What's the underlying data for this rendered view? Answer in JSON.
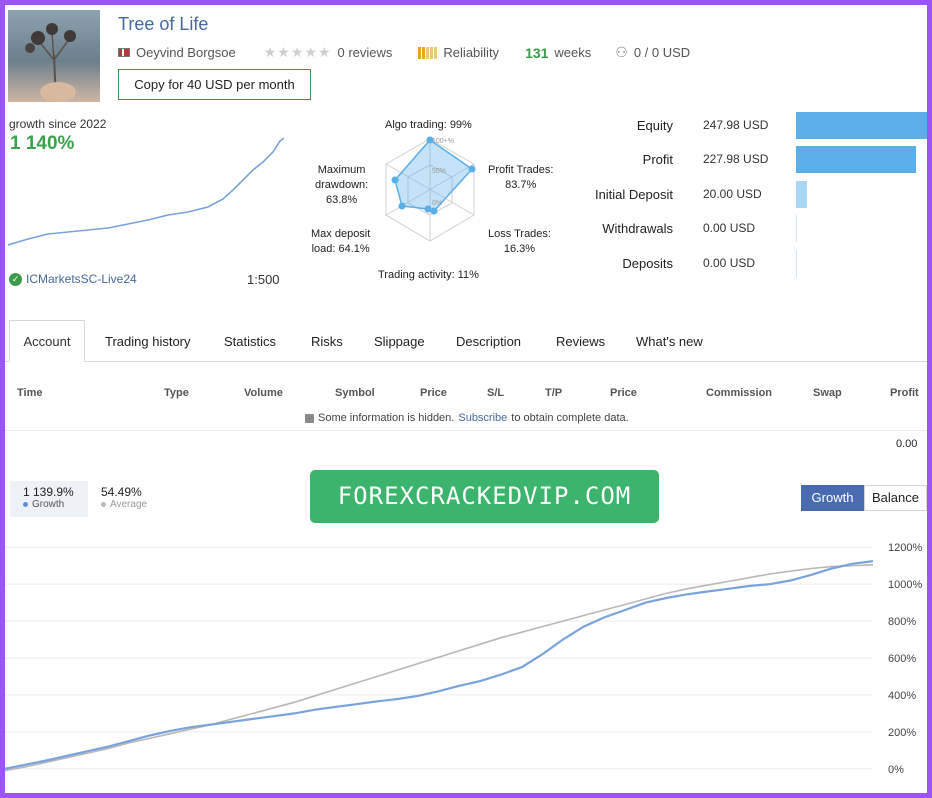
{
  "profile": {
    "title": "Tree of Life",
    "author": "Oeyvind Borgsoe",
    "reviews": "0 reviews",
    "reliability_label": "Reliability",
    "weeks_num": "131",
    "weeks_label": "weeks",
    "subscribers": "0 / 0 USD",
    "copy_button": "Copy for 40 USD per month"
  },
  "summary": {
    "growth_since": "growth since 2022",
    "growth_value": "1 140%",
    "broker": "ICMarketsSC-Live24",
    "leverage": "1:500"
  },
  "radar": {
    "algo": "Algo trading: 99%",
    "profit_trades": [
      "Profit Trades:",
      "83.7%"
    ],
    "loss_trades": [
      "Loss Trades:",
      "16.3%"
    ],
    "trading_activity": "Trading activity: 11%",
    "max_deposit": [
      "Max deposit",
      "load: 64.1%"
    ],
    "max_drawdown": [
      "Maximum",
      "drawdown:",
      "63.8%"
    ],
    "ring_labels": [
      "100+%",
      "50%",
      "0%"
    ],
    "values": [
      99,
      83.7,
      16.3,
      11,
      64.1,
      63.8
    ]
  },
  "financials": [
    {
      "label": "Equity",
      "value": "247.98 USD",
      "amount": 247.98
    },
    {
      "label": "Profit",
      "value": "227.98 USD",
      "amount": 227.98
    },
    {
      "label": "Initial Deposit",
      "value": "20.00 USD",
      "amount": 20.0
    },
    {
      "label": "Withdrawals",
      "value": "0.00 USD",
      "amount": 0
    },
    {
      "label": "Deposits",
      "value": "0.00 USD",
      "amount": 0
    }
  ],
  "tabs": [
    "Account",
    "Trading history",
    "Statistics",
    "Risks",
    "Slippage",
    "Description",
    "Reviews",
    "What's new"
  ],
  "table": {
    "columns": [
      "Time",
      "Type",
      "Volume",
      "Symbol",
      "Price",
      "S/L",
      "T/P",
      "Price",
      "Commission",
      "Swap",
      "Profit"
    ],
    "info_pre": "Some information is hidden.",
    "info_link": "Subscribe",
    "info_post": "to obtain complete data.",
    "total_profit": "0.00"
  },
  "chart_stats": {
    "growth_value": "1 139.9%",
    "growth_label": "Growth",
    "average_value": "54.49%",
    "average_label": "Average"
  },
  "watermark": "FOREXCRACKEDVIP.COM",
  "toggle": {
    "growth": "Growth",
    "balance": "Balance"
  },
  "colors": {
    "accent": "#9b55f2",
    "growth_green": "#3ca14d",
    "line_blue": "#7aa3dc",
    "bar_blue": "#5aaeea",
    "watermark_green": "#3cb46e"
  },
  "chart_data": {
    "type": "line",
    "title": "",
    "xlabel": "",
    "ylabel": "",
    "ylim": [
      -50,
      1250
    ],
    "yticks": [
      "1200%",
      "1000%",
      "800%",
      "600%",
      "400%",
      "200%",
      "0%"
    ],
    "ytick_values": [
      1200,
      1000,
      800,
      600,
      400,
      200,
      0
    ],
    "series": [
      {
        "name": "",
        "values": [
          0,
          22,
          45,
          70,
          95,
          120,
          150,
          180,
          205,
          225,
          240,
          255,
          270,
          285,
          300,
          320,
          335,
          350,
          365,
          378,
          395,
          420,
          450,
          475,
          510,
          550,
          620,
          700,
          770,
          820,
          860,
          900,
          925,
          945,
          960,
          975,
          990,
          1000,
          1020,
          1050,
          1085,
          1110,
          1125
        ]
      },
      {
        "name": "",
        "values": [
          -10,
          10,
          35,
          60,
          85,
          110,
          140,
          165,
          190,
          215,
          240,
          270,
          300,
          330,
          360,
          395,
          430,
          465,
          500,
          535,
          570,
          605,
          640,
          675,
          710,
          740,
          770,
          800,
          830,
          860,
          890,
          920,
          950,
          975,
          995,
          1015,
          1035,
          1055,
          1070,
          1085,
          1095,
          1100,
          1105
        ]
      }
    ]
  }
}
